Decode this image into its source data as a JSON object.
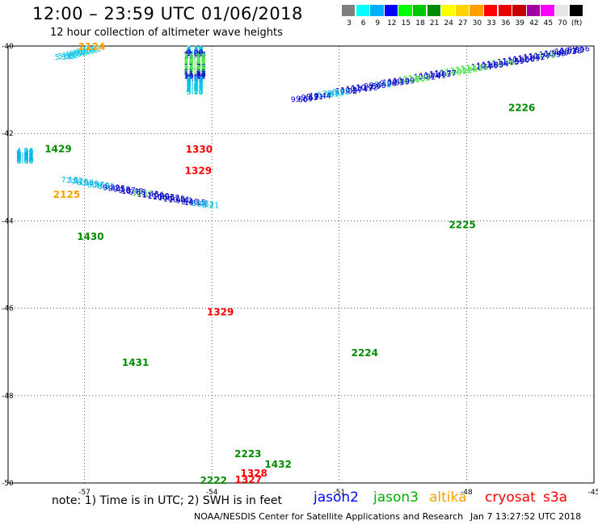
{
  "header": {
    "title": "12:00 – 23:59 UTC 01/06/2018",
    "subtitle": "12 hour collection of altimeter wave heights"
  },
  "legend": {
    "swatches": [
      {
        "color": "#7f7f7f",
        "label": "3"
      },
      {
        "color": "#00ffff",
        "label": "6"
      },
      {
        "color": "#00b0ff",
        "label": "9"
      },
      {
        "color": "#0000ff",
        "label": "12"
      },
      {
        "color": "#00ff00",
        "label": "15"
      },
      {
        "color": "#00c800",
        "label": "18"
      },
      {
        "color": "#008c00",
        "label": "21"
      },
      {
        "color": "#ffff00",
        "label": "24"
      },
      {
        "color": "#ffd200",
        "label": "27"
      },
      {
        "color": "#ffa000",
        "label": "30"
      },
      {
        "color": "#ff0000",
        "label": "33"
      },
      {
        "color": "#e60000",
        "label": "36"
      },
      {
        "color": "#c80000",
        "label": "39"
      },
      {
        "color": "#a000a0",
        "label": "42"
      },
      {
        "color": "#ff00ff",
        "label": "45"
      },
      {
        "color": "#e6e6e6",
        "label": "70"
      },
      {
        "color": "#000000",
        "label": "(ft)"
      }
    ]
  },
  "map": {
    "lon_ticks": [
      "-57",
      "-54",
      "-51",
      "-48",
      "-45"
    ],
    "lat_ticks": [
      "-40",
      "-42",
      "-44",
      "-46",
      "-48",
      "-50"
    ],
    "lon_range": [
      -58.8,
      -45
    ],
    "lat_range": [
      -50,
      -40
    ],
    "track_labels": [
      {
        "text": "2124",
        "lon": -56.83,
        "lat": -40.0,
        "color": "#ffa000"
      },
      {
        "text": "1429",
        "lon": -57.62,
        "lat": -42.34,
        "color": "#008c00"
      },
      {
        "text": "2125",
        "lon": -57.42,
        "lat": -43.38,
        "color": "#ffa000"
      },
      {
        "text": "1430",
        "lon": -56.86,
        "lat": -44.34,
        "color": "#008c00"
      },
      {
        "text": "1330",
        "lon": -54.3,
        "lat": -42.35,
        "color": "#ff0000"
      },
      {
        "text": "1329",
        "lon": -54.32,
        "lat": -42.84,
        "color": "#ff0000"
      },
      {
        "text": "1329",
        "lon": -53.8,
        "lat": -46.07,
        "color": "#ff0000"
      },
      {
        "text": "1431",
        "lon": -55.8,
        "lat": -47.23,
        "color": "#008c00"
      },
      {
        "text": "2226",
        "lon": -46.7,
        "lat": -41.4,
        "color": "#008c00"
      },
      {
        "text": "2225",
        "lon": -48.1,
        "lat": -44.08,
        "color": "#008c00"
      },
      {
        "text": "2224",
        "lon": -50.4,
        "lat": -47.01,
        "color": "#008c00"
      },
      {
        "text": "2223",
        "lon": -53.15,
        "lat": -49.32,
        "color": "#008c00"
      },
      {
        "text": "1432",
        "lon": -52.44,
        "lat": -49.56,
        "color": "#008c00"
      },
      {
        "text": "1328",
        "lon": -53.01,
        "lat": -49.76,
        "color": "#ff0000"
      },
      {
        "text": "1327",
        "lon": -53.14,
        "lat": -49.91,
        "color": "#ff0000"
      },
      {
        "text": "2222",
        "lon": -53.96,
        "lat": -49.93,
        "color": "#008c00"
      }
    ],
    "tracks": [
      {
        "name": "track-nw-upper",
        "lon_start": -56.8,
        "lat_start": -40.05,
        "dlon": -0.078,
        "dlat": 0.0,
        "lat_step": 0.1075,
        "color_default": "#00b0ff",
        "values": [
          "3.61",
          "4.08",
          "4.16",
          "4.22",
          "4.51",
          "4.94",
          "4.85",
          "4.82",
          "5.33",
          "5.34"
        ]
      },
      {
        "name": "track-nw-cluster",
        "lon_start": -58.4,
        "lat_start": -42.38,
        "dlon": 0.0,
        "dlat": 0.0,
        "lat_step": 0.107,
        "color_default": "#00b0ff",
        "values": [
          "4.56",
          "4.95",
          "4.85",
          "6.42",
          "6.82",
          "6.91",
          "8.02",
          "7.83",
          "6.41",
          "6.69",
          "6.36",
          "6.60"
        ]
      },
      {
        "name": "track-nw-lower",
        "lon_start": -57.35,
        "lat_start": -43.05,
        "dlon": 0.123,
        "dlat": 0.0,
        "lat_step": 0.1075,
        "color_default": "#0000ff",
        "values": [
          "7.10",
          "7.12",
          "7.10",
          "6.38",
          "7.49",
          "8.37",
          "7.60",
          "8.51",
          "9.32",
          "9.85",
          "9.58",
          "9.87",
          "10.49",
          "9.83",
          "12.13",
          "11.43",
          "11.56",
          "11.30",
          "10.33",
          "10.52",
          "10.15",
          "10.01",
          "9.41",
          "9.46",
          "10.15",
          "8.42",
          "8.52",
          "8.21"
        ]
      },
      {
        "name": "track-center",
        "lon_start": -54.4,
        "lat_start": -40.05,
        "dlon": 0.0,
        "dlat": 0.0,
        "lat_step": 0.1075,
        "color_default": "#0000ff",
        "values": [
          "7.10",
          "6.73",
          "7.07",
          "8.50",
          "9.09",
          "9.88",
          "11.38",
          "11.89",
          "13.15",
          "13.27",
          "12.74",
          "13.12",
          "13.24",
          "12.47",
          "13.17",
          "14.03",
          "14.63",
          "12.52",
          "12.83",
          "11.79",
          "13.19",
          "14.05",
          "12.57",
          "13.46",
          "12.53",
          "11.88",
          "12.36",
          "11.33",
          "11.19",
          "10.31",
          "9.88",
          "9.16",
          "8.83",
          "8.17",
          "7.90",
          "6.21",
          "5.38",
          "5.23",
          "6.61",
          "5.61",
          "5.44",
          "5.41",
          "5.27",
          "4.82",
          "4.58",
          "4.15",
          "5.10"
        ]
      },
      {
        "name": "track-east",
        "lon_start": -45.3,
        "lat_start": -40.05,
        "dlon": -0.123,
        "dlat": 0.0,
        "lat_step": 0.1075,
        "color_default": "#0000ff",
        "values": [
          "9.56",
          "9.83",
          "10.18",
          "10.03",
          "9.60",
          "10.49",
          "10.35",
          "12.55",
          "10.77",
          "11.72",
          "11.89",
          "11.50",
          "10.80",
          "11.59",
          "11.13",
          "12.36",
          "11.34",
          "11.83",
          "10.85",
          "11.67",
          "12.59",
          "13.13",
          "12.28",
          "12.12",
          "13.43",
          "12.80",
          "10.77",
          "11.03",
          "11.41",
          "10.74",
          "10.81",
          "12.95",
          "12.80",
          "12.26",
          "10.09",
          "10.73",
          "10.53",
          "9.26",
          "8.48",
          "9.60",
          "9.69",
          "10.72",
          "11.19",
          "10.74",
          "10.37",
          "10.02",
          "8.32",
          "8.53",
          "7.61",
          "6.85",
          "10.44",
          "9.31",
          "9.53",
          "9.69",
          "9.60"
        ]
      }
    ]
  },
  "note": {
    "text": "note:  1) Time is in UTC;  2) SWH is in feet",
    "satellites": [
      {
        "name": "jason2",
        "color": "#0000ff"
      },
      {
        "name": "jason3",
        "color": "#00b000"
      },
      {
        "name": "altika",
        "color": "#ffa000"
      },
      {
        "name": "cryosat",
        "color": "#ff0000"
      },
      {
        "name": "s3a",
        "color": "#ff0000"
      }
    ]
  },
  "footer": {
    "credit": "NOAA/NESDIS Center for Satellite Applications and Research",
    "timestamp": "Jan  7 13:27:52 UTC 2018"
  }
}
